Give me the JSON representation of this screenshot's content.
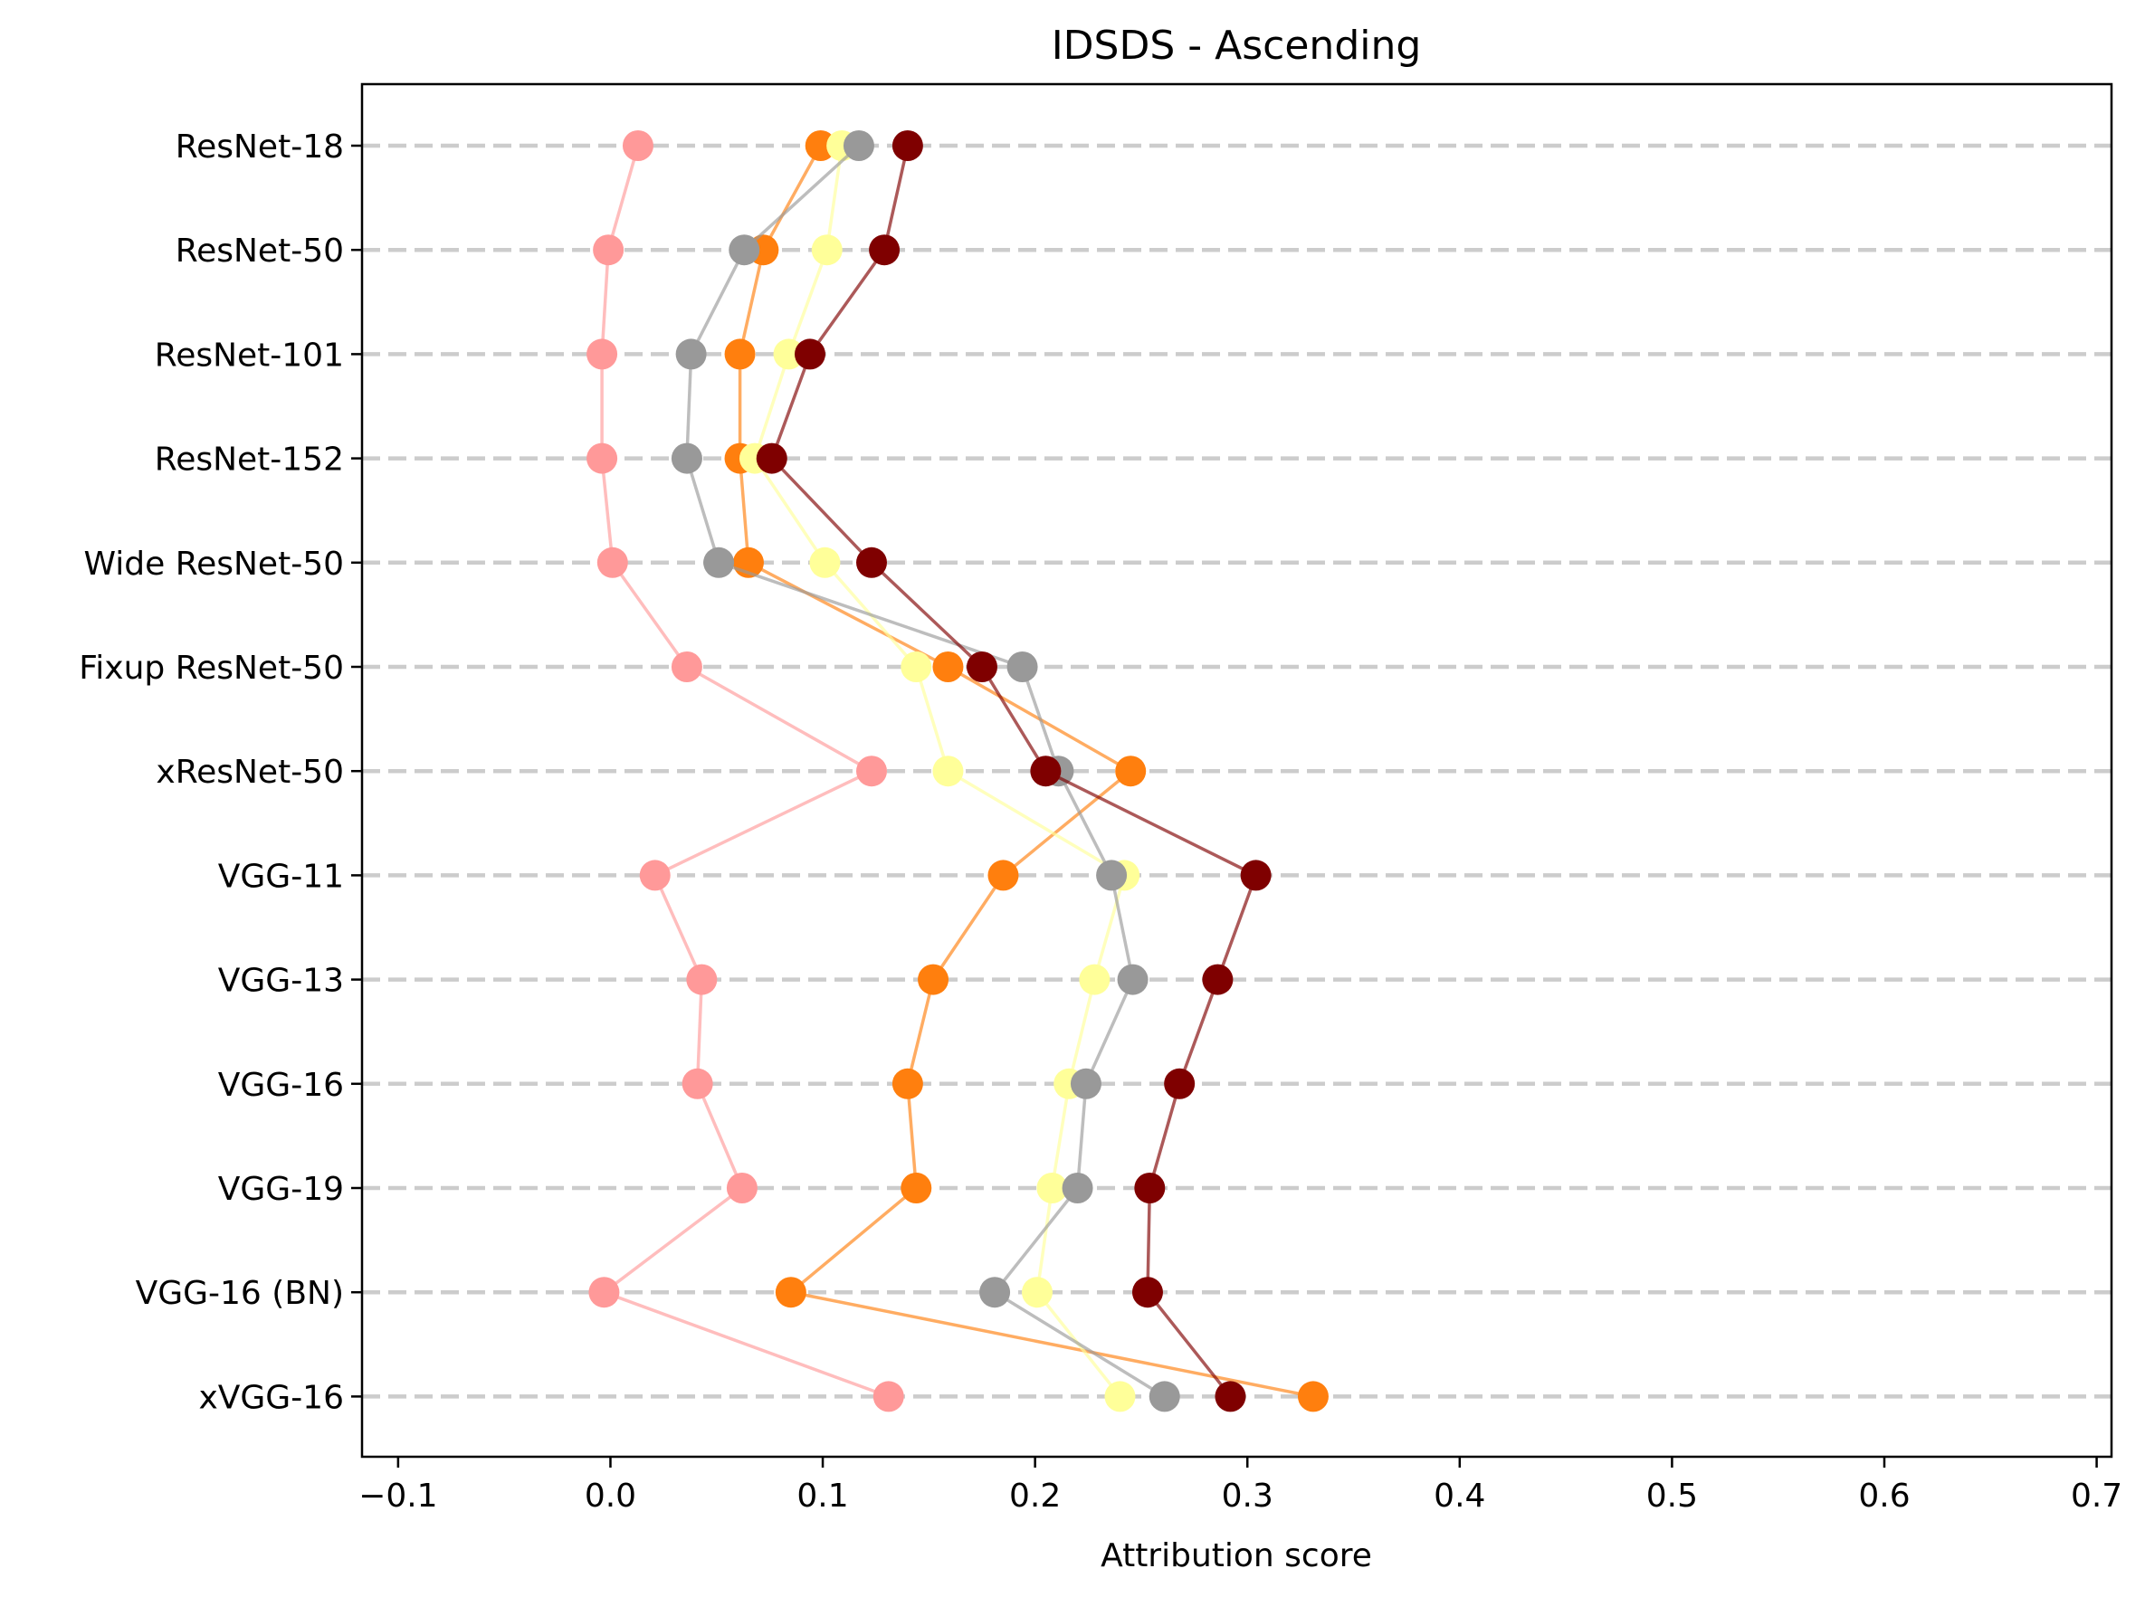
{
  "chart_data": {
    "type": "scatter",
    "title": "IDSDS - Ascending",
    "xlabel": "Attribution score",
    "ylabel": "",
    "xlim": [
      -0.117,
      0.707
    ],
    "xticks": [
      -0.1,
      0.0,
      0.1,
      0.2,
      0.3,
      0.4,
      0.5,
      0.6,
      0.7
    ],
    "xtick_labels": [
      "−0.1",
      "0.0",
      "0.1",
      "0.2",
      "0.3",
      "0.4",
      "0.5",
      "0.6",
      "0.7"
    ],
    "categories": [
      "ResNet-18",
      "ResNet-50",
      "ResNet-101",
      "ResNet-152",
      "Wide ResNet-50",
      "Fixup ResNet-50",
      "xResNet-50",
      "VGG-11",
      "VGG-13",
      "VGG-16",
      "VGG-19",
      "VGG-16 (BN)",
      "xVGG-16"
    ],
    "grid": "horizontal dashed",
    "legend": "none",
    "series": [
      {
        "color": "#ff9999",
        "values": [
          0.013,
          -0.001,
          -0.004,
          -0.004,
          0.001,
          0.036,
          0.123,
          0.021,
          0.043,
          0.041,
          0.062,
          -0.003,
          0.131
        ]
      },
      {
        "color": "#ff7f0e",
        "values": [
          0.099,
          0.072,
          0.061,
          0.061,
          0.065,
          0.159,
          0.245,
          0.185,
          0.152,
          0.14,
          0.144,
          0.085,
          0.331
        ]
      },
      {
        "color": "#ffff99",
        "values": [
          0.109,
          0.102,
          0.084,
          0.068,
          0.101,
          0.144,
          0.159,
          0.242,
          0.228,
          0.216,
          0.208,
          0.201,
          0.24
        ]
      },
      {
        "color": "#999999",
        "values": [
          0.117,
          0.063,
          0.038,
          0.036,
          0.051,
          0.194,
          0.211,
          0.236,
          0.246,
          0.224,
          0.22,
          0.181,
          0.261
        ]
      },
      {
        "color": "#7f0000",
        "values": [
          0.14,
          0.129,
          0.094,
          0.076,
          0.123,
          0.175,
          0.205,
          0.304,
          0.286,
          0.268,
          0.254,
          0.253,
          0.292
        ]
      }
    ]
  }
}
